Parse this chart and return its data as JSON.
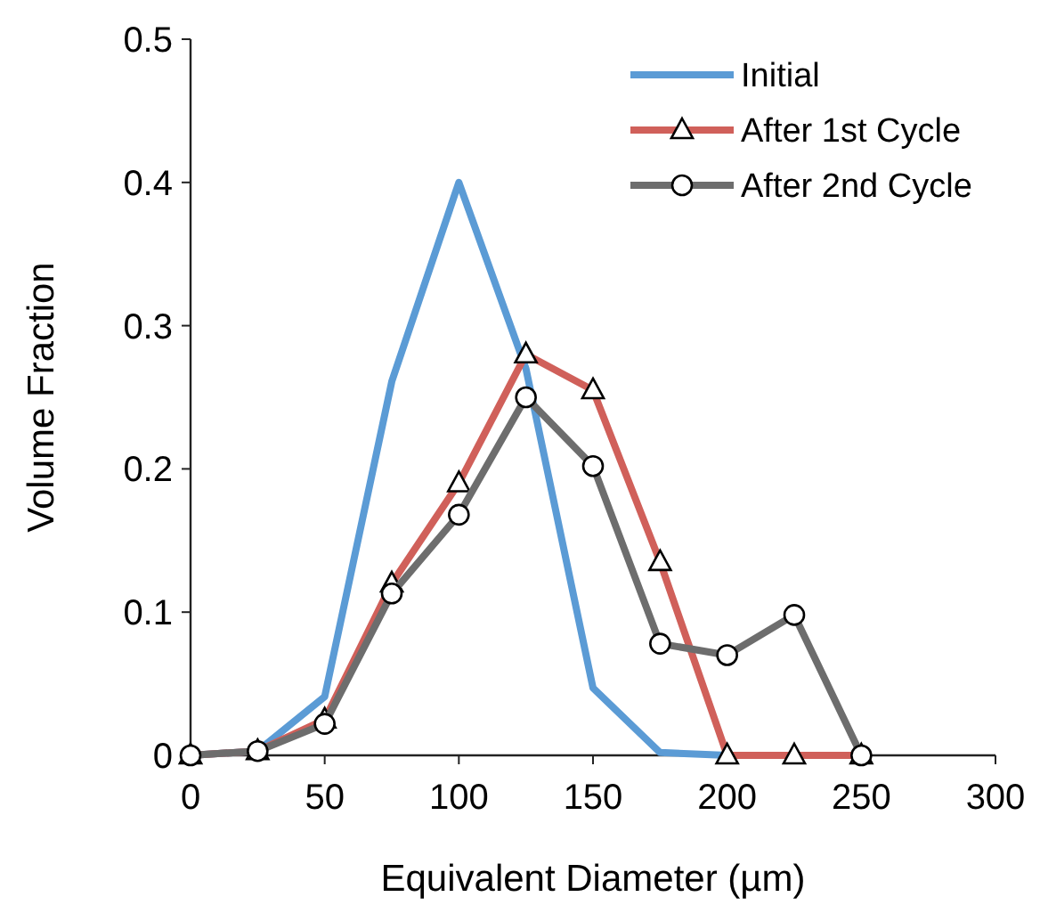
{
  "chart_data": {
    "type": "line",
    "xlabel": "Equivalent Diameter (µm)",
    "ylabel": "Volume Fraction",
    "x": [
      0,
      25,
      50,
      75,
      100,
      125,
      150,
      175,
      200,
      225,
      250
    ],
    "series": [
      {
        "name": "Initial",
        "color": "#5b9bd5",
        "marker": "none",
        "values": [
          0,
          0.003,
          0.041,
          0.261,
          0.4,
          0.27,
          0.047,
          0.002,
          0,
          0,
          0
        ]
      },
      {
        "name": "After 1st Cycle",
        "color": "#d0605a",
        "marker": "triangle",
        "values": [
          0,
          0.003,
          0.025,
          0.12,
          0.19,
          0.28,
          0.255,
          0.135,
          0,
          0,
          0
        ]
      },
      {
        "name": "After 2nd Cycle",
        "color": "#6d6d6d",
        "marker": "circle",
        "values": [
          0,
          0.003,
          0.022,
          0.113,
          0.168,
          0.25,
          0.202,
          0.078,
          0.07,
          0.098,
          0
        ]
      }
    ],
    "xlim": [
      0,
      300
    ],
    "xticks": [
      0,
      50,
      100,
      150,
      200,
      250,
      300
    ],
    "ylim": [
      0,
      0.5
    ],
    "yticks": [
      {
        "value": 0,
        "label": "0"
      },
      0.1,
      0.2,
      0.3,
      0.4,
      0.5
    ],
    "grid": false,
    "legend": "top right",
    "line_style": "solid"
  }
}
